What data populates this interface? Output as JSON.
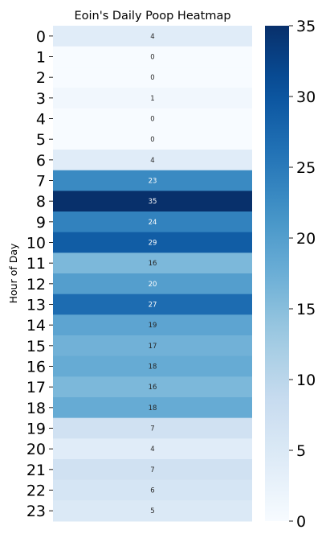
{
  "chart_data": {
    "type": "heatmap",
    "title": "Eoin's Daily Poop Heatmap",
    "xlabel": "",
    "ylabel": "Hour of Day",
    "y_categories": [
      "0",
      "1",
      "2",
      "3",
      "4",
      "5",
      "6",
      "7",
      "8",
      "9",
      "10",
      "11",
      "12",
      "13",
      "14",
      "15",
      "16",
      "17",
      "18",
      "19",
      "20",
      "21",
      "22",
      "23"
    ],
    "values": [
      4,
      0,
      0,
      1,
      0,
      0,
      4,
      23,
      35,
      24,
      29,
      16,
      20,
      27,
      19,
      17,
      18,
      16,
      18,
      7,
      4,
      7,
      6,
      5
    ],
    "colormap": "Blues",
    "vmin": 0,
    "vmax": 35,
    "colorbar_ticks": [
      0,
      5,
      10,
      15,
      20,
      25,
      30,
      35
    ],
    "annotations": true
  }
}
